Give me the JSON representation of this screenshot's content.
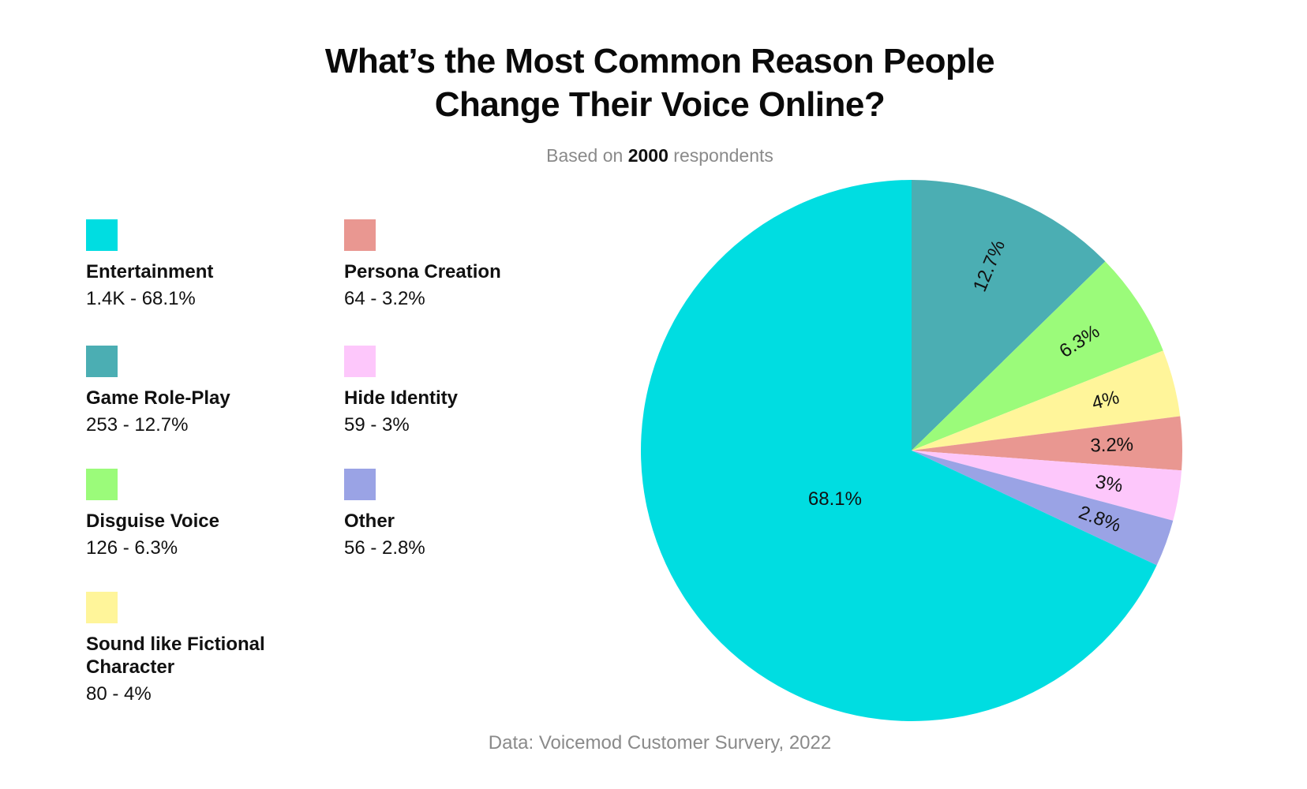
{
  "chart_data": {
    "type": "pie",
    "title": "What’s the Most Common Reason People Change Their Voice Online?",
    "title_lines": [
      "What’s the Most Common Reason People",
      "Change Their Voice Online?"
    ],
    "subtitle": {
      "prefix": "Based on",
      "highlight": "2000",
      "suffix": "respondents"
    },
    "source": "Data: Voicemod Customer Survery, 2022",
    "total_respondents": 2000,
    "slices": [
      {
        "label": "Game Role-Play",
        "count": 253,
        "count_label": "253",
        "percent": 12.7,
        "percent_label": "12.7%",
        "legend_value": "253 - 12.7%",
        "color": "#4BAEB3"
      },
      {
        "label": "Disguise Voice",
        "count": 126,
        "count_label": "126",
        "percent": 6.3,
        "percent_label": "6.3%",
        "legend_value": "126 - 6.3%",
        "color": "#9BFB7A"
      },
      {
        "label": "Sound like Fictional Character",
        "count": 80,
        "count_label": "80",
        "percent": 4.0,
        "percent_label": "4%",
        "legend_value": "80 - 4%",
        "color": "#FFF59A"
      },
      {
        "label": "Persona Creation",
        "count": 64,
        "count_label": "64",
        "percent": 3.2,
        "percent_label": "3.2%",
        "legend_value": "64 - 3.2%",
        "color": "#E99791"
      },
      {
        "label": "Hide Identity",
        "count": 59,
        "count_label": "59",
        "percent": 3.0,
        "percent_label": "3%",
        "legend_value": "59 - 3%",
        "color": "#FDC7FB"
      },
      {
        "label": "Other",
        "count": 56,
        "count_label": "56",
        "percent": 2.8,
        "percent_label": "2.8%",
        "legend_value": "56 - 2.8%",
        "color": "#9AA3E5"
      },
      {
        "label": "Entertainment",
        "count": 1400,
        "count_label": "1.4K",
        "percent": 68.1,
        "percent_label": "68.1%",
        "legend_value": "1.4K - 68.1%",
        "color": "#00DDE1"
      }
    ],
    "legend": [
      {
        "label": "Entertainment",
        "value": "1.4K - 68.1%",
        "color": "#00DDE1"
      },
      {
        "label": "Game Role-Play",
        "value": "253 - 12.7%",
        "color": "#4BAEB3"
      },
      {
        "label": "Disguise Voice",
        "value": "126 - 6.3%",
        "color": "#9BFB7A"
      },
      {
        "label": "Sound like Fictional Character",
        "value": "80 - 4%",
        "color": "#FFF59A"
      },
      {
        "label": "Persona Creation",
        "value": "64 - 3.2%",
        "color": "#E99791"
      },
      {
        "label": "Hide Identity",
        "value": "59 - 3%",
        "color": "#FDC7FB"
      },
      {
        "label": "Other",
        "value": "56 - 2.8%",
        "color": "#9AA3E5"
      }
    ]
  }
}
